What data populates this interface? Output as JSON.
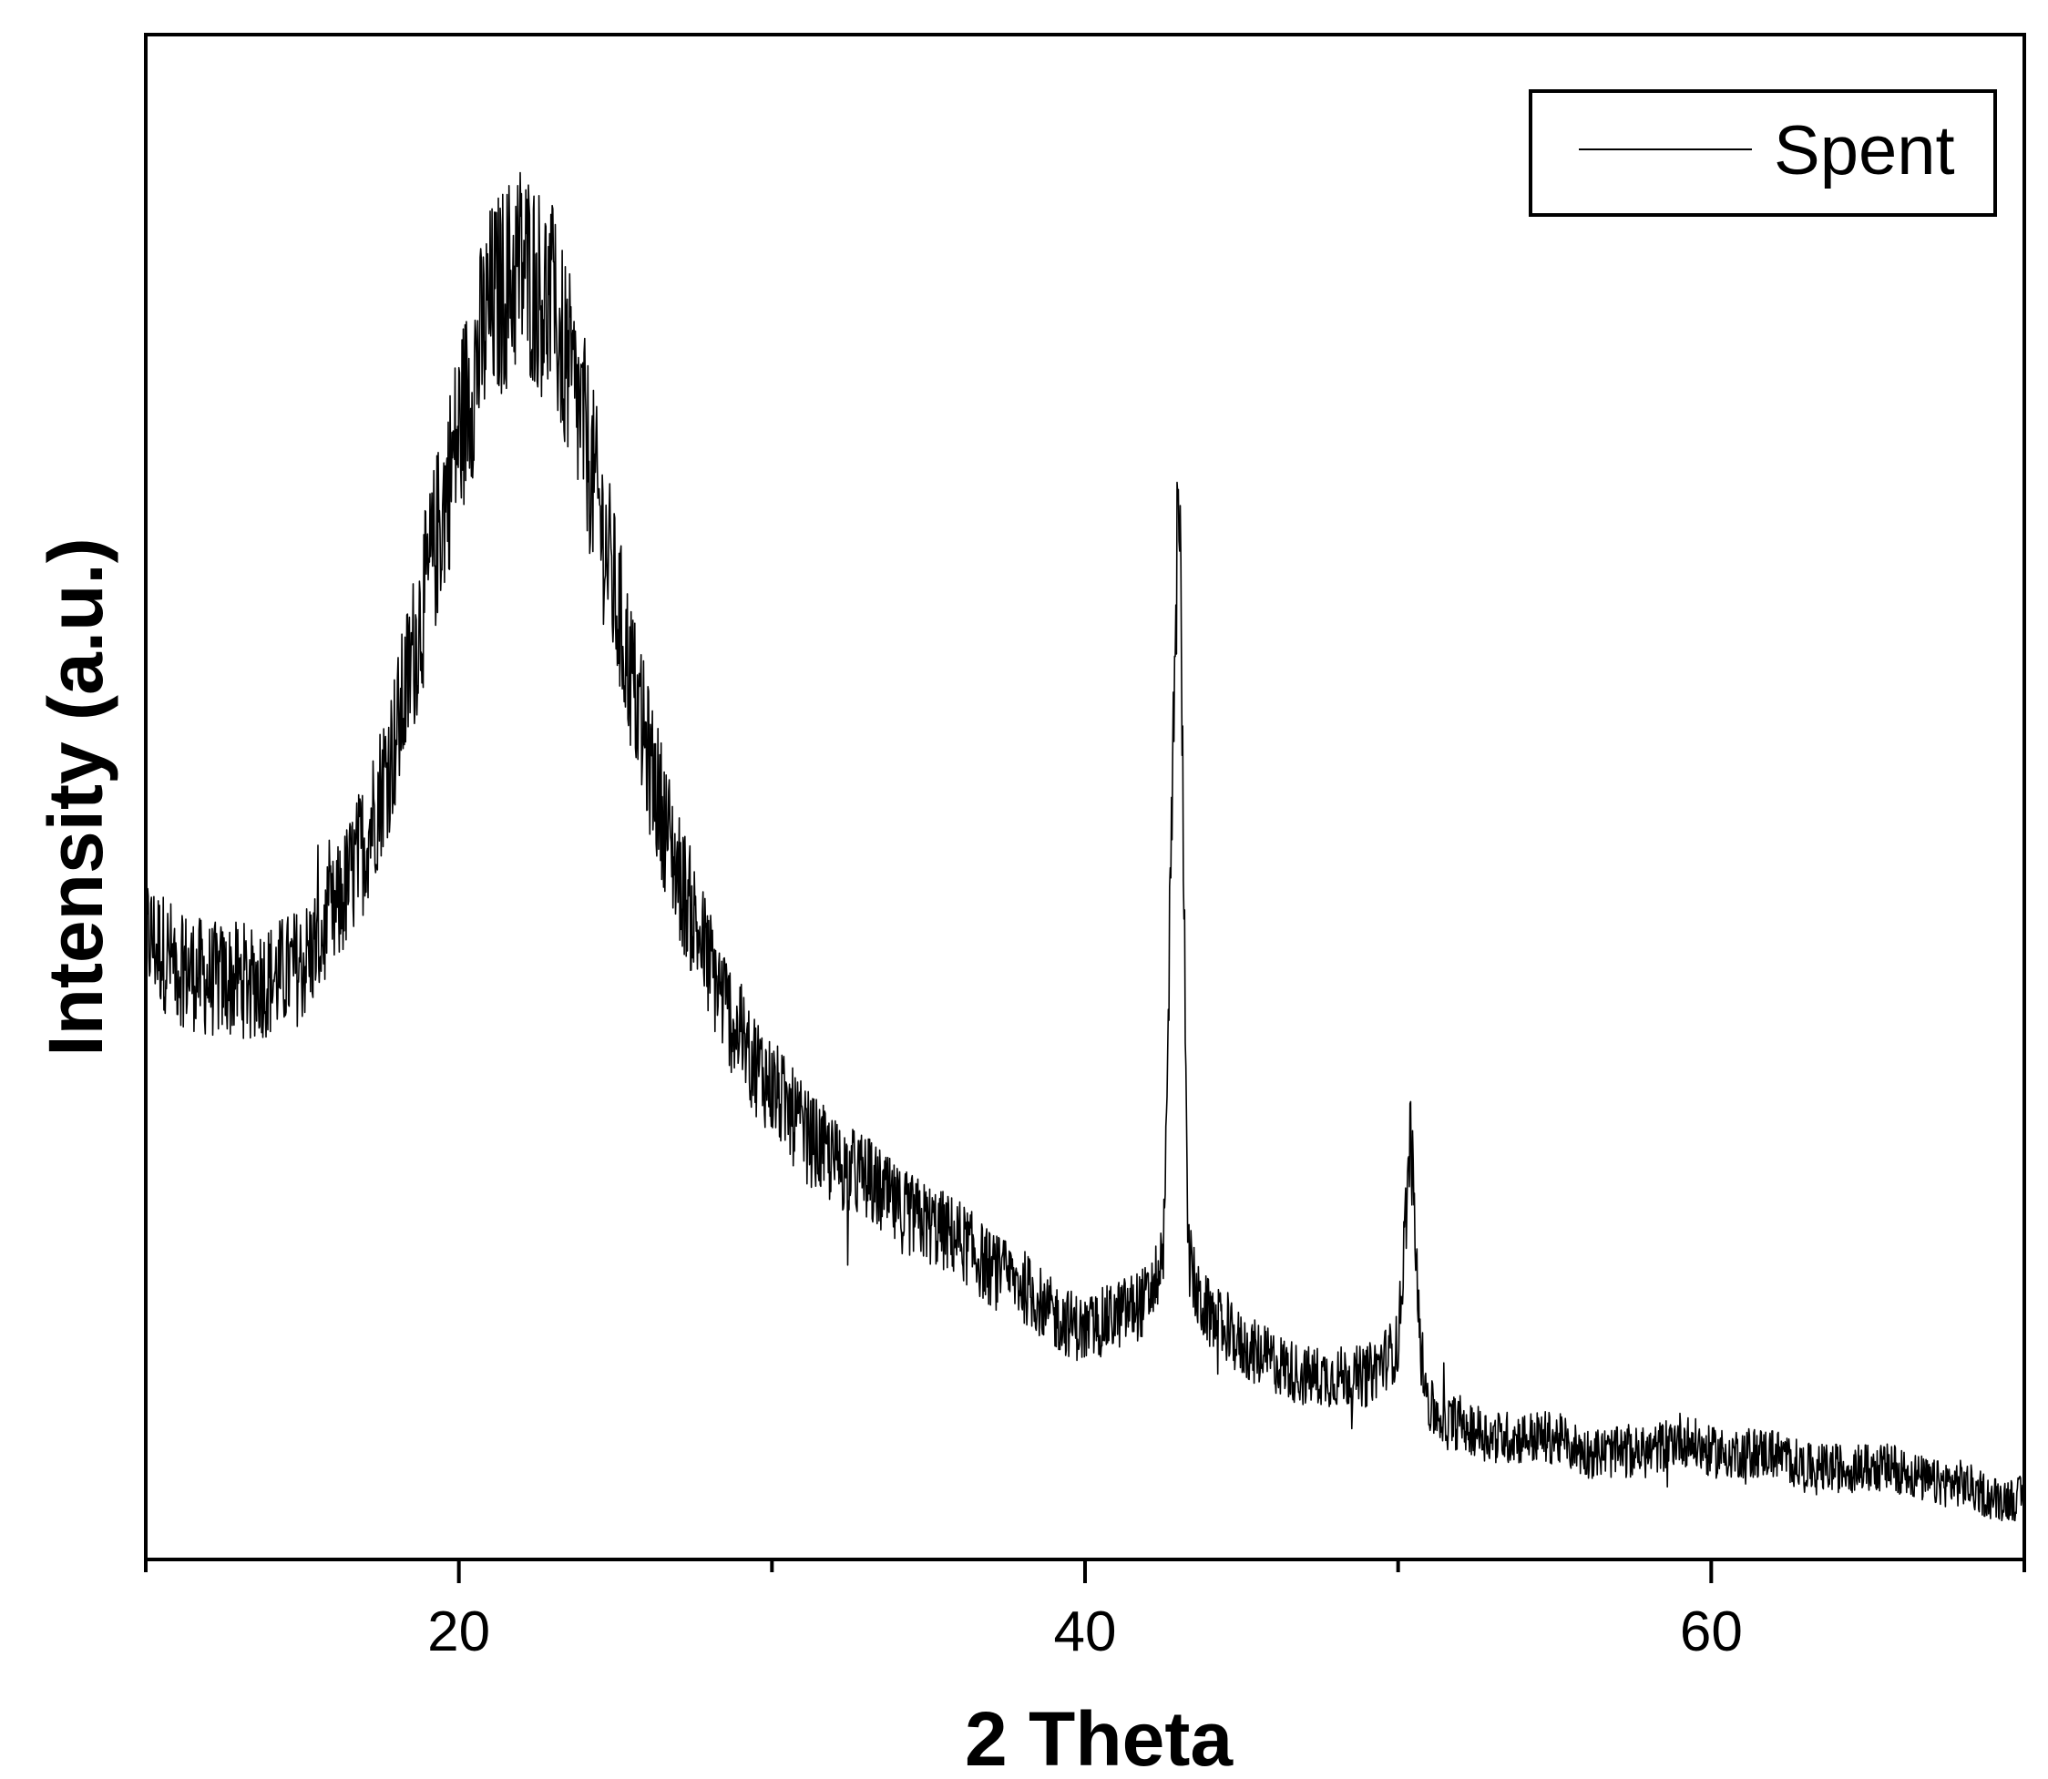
{
  "chart_data": {
    "type": "line",
    "xlabel": "2 Theta",
    "ylabel": "Intensity (a.u.)",
    "xlim": [
      10,
      70
    ],
    "ylim": [
      0,
      1
    ],
    "x_ticks": [
      20,
      40,
      60
    ],
    "x_minor_ticks": [
      10,
      30,
      50,
      70
    ],
    "y_ticks_shown": false,
    "grid": false,
    "legend_position": "top-right",
    "series": [
      {
        "name": "Spent",
        "color": "#000000",
        "noisy": true,
        "x": [
          10,
          11,
          12,
          13,
          14,
          15,
          16,
          17,
          18,
          19,
          20,
          21,
          22,
          23,
          24,
          25,
          26,
          27,
          28,
          29,
          30,
          31,
          32,
          33,
          34,
          35,
          36,
          37,
          38,
          39,
          40,
          41,
          42,
          42.5,
          43,
          43.3,
          43.6,
          44,
          44.5,
          45,
          46,
          47,
          48,
          49,
          50,
          50.4,
          50.7,
          51,
          51.5,
          52,
          53,
          54,
          55,
          56,
          57,
          58,
          59,
          60,
          61,
          62,
          63,
          64,
          65,
          66,
          67,
          68,
          69,
          70
        ],
        "y": [
          0.41,
          0.39,
          0.38,
          0.38,
          0.38,
          0.39,
          0.42,
          0.47,
          0.54,
          0.64,
          0.74,
          0.82,
          0.85,
          0.82,
          0.74,
          0.63,
          0.53,
          0.45,
          0.39,
          0.34,
          0.31,
          0.28,
          0.26,
          0.25,
          0.23,
          0.22,
          0.21,
          0.19,
          0.18,
          0.16,
          0.15,
          0.16,
          0.17,
          0.2,
          0.72,
          0.2,
          0.17,
          0.16,
          0.15,
          0.14,
          0.13,
          0.12,
          0.12,
          0.12,
          0.14,
          0.28,
          0.14,
          0.1,
          0.09,
          0.09,
          0.08,
          0.08,
          0.08,
          0.07,
          0.07,
          0.07,
          0.08,
          0.07,
          0.07,
          0.07,
          0.06,
          0.06,
          0.06,
          0.06,
          0.05,
          0.05,
          0.04,
          0.04
        ]
      }
    ]
  }
}
